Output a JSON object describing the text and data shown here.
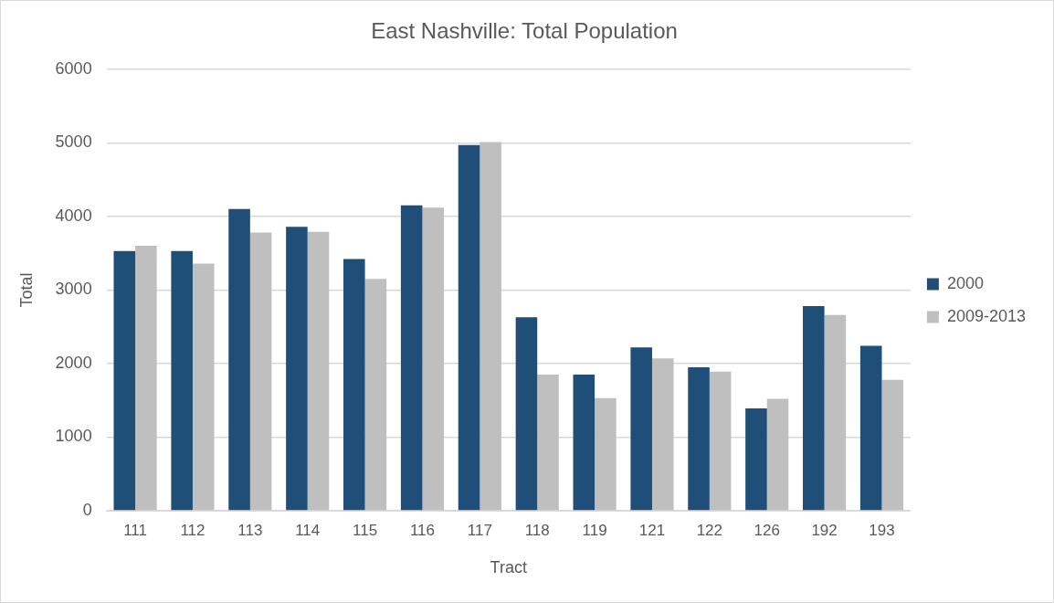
{
  "chart_data": {
    "type": "bar",
    "title": "East Nashville: Total Population",
    "xlabel": "Tract",
    "ylabel": "Total",
    "categories": [
      "111",
      "112",
      "113",
      "114",
      "115",
      "116",
      "117",
      "118",
      "119",
      "121",
      "122",
      "126",
      "192",
      "193"
    ],
    "series": [
      {
        "name": "2000",
        "color": "#1f4e79",
        "values": [
          3530,
          3530,
          4100,
          3860,
          3420,
          4150,
          4970,
          2630,
          1850,
          2220,
          1950,
          1390,
          2780,
          2240
        ]
      },
      {
        "name": "2009-2013",
        "color": "#bfbfbf",
        "values": [
          3600,
          3360,
          3780,
          3790,
          3150,
          4120,
          5010,
          1850,
          1530,
          2070,
          1890,
          1520,
          2660,
          1780
        ]
      }
    ],
    "ylim": [
      0,
      6000
    ],
    "yticks": [
      0,
      1000,
      2000,
      3000,
      4000,
      5000,
      6000
    ],
    "grid": "y",
    "legend": "right"
  }
}
